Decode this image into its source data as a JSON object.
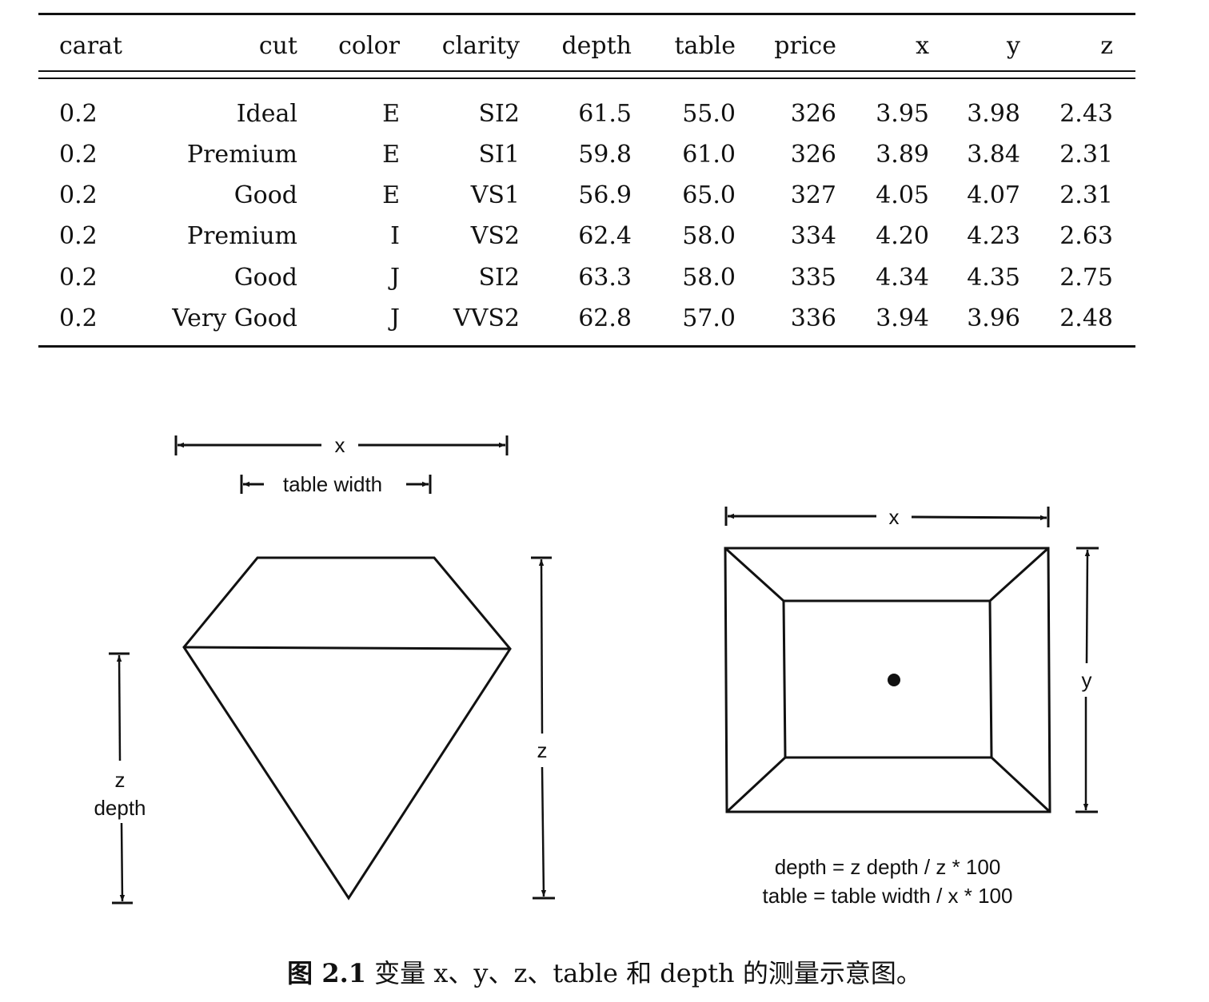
{
  "table": {
    "columns": [
      "carat",
      "cut",
      "color",
      "clarity",
      "depth",
      "table",
      "price",
      "x",
      "y",
      "z"
    ],
    "rows": [
      [
        "0.2",
        "Ideal",
        "E",
        "SI2",
        "61.5",
        "55.0",
        "326",
        "3.95",
        "3.98",
        "2.43"
      ],
      [
        "0.2",
        "Premium",
        "E",
        "SI1",
        "59.8",
        "61.0",
        "326",
        "3.89",
        "3.84",
        "2.31"
      ],
      [
        "0.2",
        "Good",
        "E",
        "VS1",
        "56.9",
        "65.0",
        "327",
        "4.05",
        "4.07",
        "2.31"
      ],
      [
        "0.2",
        "Premium",
        "I",
        "VS2",
        "62.4",
        "58.0",
        "334",
        "4.20",
        "4.23",
        "2.63"
      ],
      [
        "0.2",
        "Good",
        "J",
        "SI2",
        "63.3",
        "58.0",
        "335",
        "4.34",
        "4.35",
        "2.75"
      ],
      [
        "0.2",
        "Very Good",
        "J",
        "VVS2",
        "62.8",
        "57.0",
        "336",
        "3.94",
        "3.96",
        "2.48"
      ]
    ]
  },
  "diagram": {
    "side_view": {
      "x_label": "x",
      "table_width_label": "table width",
      "z_label": "z",
      "z_depth_label_line1": "z",
      "z_depth_label_line2": "depth"
    },
    "top_view": {
      "x_label": "x",
      "y_label": "y"
    },
    "formula_line1": "depth = z depth / z * 100",
    "formula_line2": "table = table width / x * 100"
  },
  "caption": {
    "number": "图 2.1",
    "text": "变量 x、y、z、table 和 depth 的测量示意图。"
  }
}
